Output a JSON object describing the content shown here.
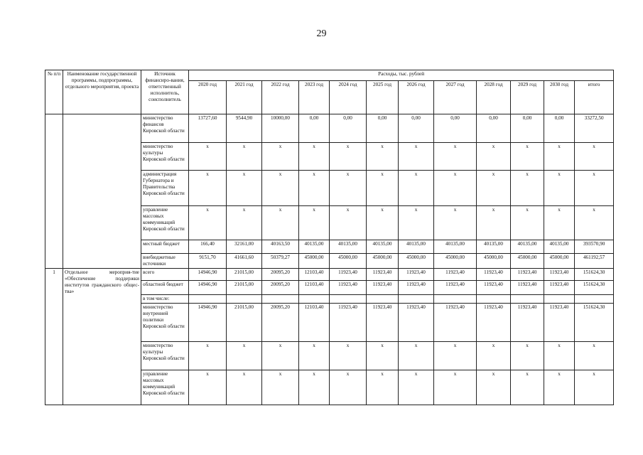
{
  "page_number": "29",
  "header": {
    "num": "№ п/п",
    "name": "Наименование государственной программы, подпрограммы, отдельного мероприятия, проекта",
    "source": "Источник финансиро-вания, ответственный исполнитель, соисполнитель",
    "expenses": "Расходы, тыс. рублей",
    "years": [
      "2020 год",
      "2021 год",
      "2022 год",
      "2023 год",
      "2024 год",
      "2025 год",
      "2026 год",
      "2027 год",
      "2028 год",
      "2029 год",
      "2030 год",
      "итого"
    ]
  },
  "block1": {
    "rows": [
      {
        "source": "министерство финансов Кировской области",
        "values": [
          "13727,60",
          "9544,90",
          "10000,00",
          "0,00",
          "0,00",
          "0,00",
          "0,00",
          "0,00",
          "0,00",
          "0,00",
          "0,00",
          "33272,50"
        ]
      },
      {
        "source": "министерство культуры Кировской области",
        "values": [
          "х",
          "х",
          "х",
          "х",
          "х",
          "х",
          "х",
          "х",
          "х",
          "х",
          "х",
          "х"
        ]
      },
      {
        "source": "администрация Губернатора и Правительства Кировской области",
        "values": [
          "х",
          "х",
          "х",
          "х",
          "х",
          "х",
          "х",
          "х",
          "х",
          "х",
          "х",
          "х"
        ]
      },
      {
        "source": "управление массовых коммуникаций Кировской области",
        "values": [
          "х",
          "х",
          "х",
          "х",
          "х",
          "х",
          "х",
          "х",
          "х",
          "х",
          "х",
          "х"
        ]
      },
      {
        "source": "местный бюджет",
        "values": [
          "166,40",
          "32161,00",
          "40163,50",
          "40135,00",
          "40135,00",
          "40135,00",
          "40135,00",
          "40135,00",
          "40135,00",
          "40135,00",
          "40135,00",
          "393570,90"
        ]
      },
      {
        "source": "внебюджетные источники",
        "values": [
          "9151,70",
          "41661,60",
          "50379,27",
          "45000,00",
          "45000,00",
          "45000,00",
          "45000,00",
          "45000,00",
          "45000,00",
          "45000,00",
          "45000,00",
          "461192,57"
        ]
      }
    ]
  },
  "block2": {
    "num": "1",
    "name": "Отдельное мероприя-тие «Обеспечение поддержки институтов гражданского общес-тва»",
    "rows": [
      {
        "source": "всего",
        "values": [
          "14946,90",
          "21015,00",
          "20095,20",
          "12103,40",
          "11923,40",
          "11923,40",
          "11923,40",
          "11923,40",
          "11923,40",
          "11923,40",
          "11923,40",
          "151624,30"
        ]
      },
      {
        "source": "областной бюджет",
        "values": [
          "14946,90",
          "21015,00",
          "20095,20",
          "12103,40",
          "11923,40",
          "11923,40",
          "11923,40",
          "11923,40",
          "11923,40",
          "11923,40",
          "11923,40",
          "151624,30"
        ]
      },
      {
        "source": "в том числе:",
        "values": [
          "",
          "",
          "",
          "",
          "",
          "",
          "",
          "",
          "",
          "",
          "",
          ""
        ]
      },
      {
        "source": "министерство внутренней политики Кировской области",
        "values": [
          "14946,90",
          "21015,00",
          "20095,20",
          "12103,40",
          "11923,40",
          "11923,40",
          "11923,40",
          "11923,40",
          "11923,40",
          "11923,40",
          "11923,40",
          "151624,30"
        ]
      },
      {
        "source": "министерство культуры Кировской области",
        "values": [
          "х",
          "х",
          "х",
          "х",
          "х",
          "х",
          "х",
          "х",
          "х",
          "х",
          "х",
          "х"
        ]
      },
      {
        "source": "управление массовых коммуникаций Кировской области",
        "values": [
          "х",
          "х",
          "х",
          "х",
          "х",
          "х",
          "х",
          "х",
          "х",
          "х",
          "х",
          "х"
        ]
      }
    ]
  }
}
